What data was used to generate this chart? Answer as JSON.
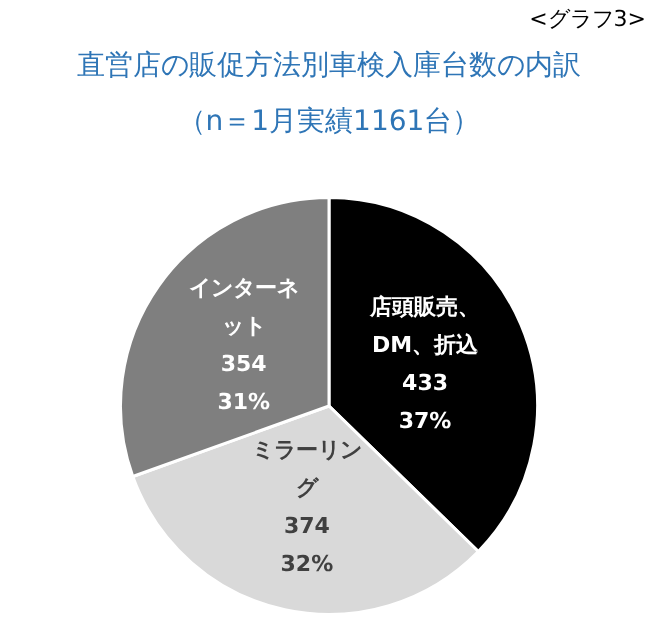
{
  "chart_data": {
    "type": "pie",
    "title": "直営店の販促方法別車検入庫台数の内訳",
    "subtitle": "（n＝1月実績1161台）",
    "annotations": [
      "<グラフ3>"
    ],
    "categories": [
      "店頭販売、DM、折込",
      "ミラーリング",
      "インターネット"
    ],
    "values": [
      433,
      374,
      354
    ],
    "value_labels": [
      "433\n37%",
      "374\n32%",
      "354\n31%"
    ],
    "colors": [
      "#000000",
      "#d9d9d9",
      "#7f7f7f"
    ],
    "legend": false
  }
}
